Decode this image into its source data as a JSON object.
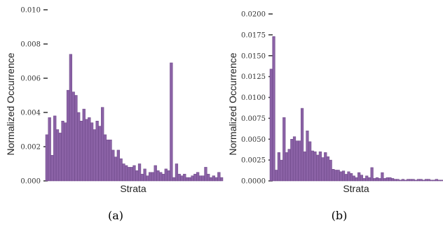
{
  "bar_color": "#8b62a6",
  "chart_data": [
    {
      "type": "bar",
      "panel_label": "(a)",
      "xlabel": "Strata",
      "ylabel": "Normalized Occurrence",
      "ylim": [
        0,
        0.01
      ],
      "yticks": [
        0,
        0.002,
        0.004,
        0.006,
        0.008,
        0.01
      ],
      "ytick_labels": [
        "0.000",
        "0.002",
        "0.004",
        "0.006",
        "0.008",
        "0.010"
      ],
      "values": [
        0.0027,
        0.0037,
        0.0015,
        0.0038,
        0.003,
        0.0028,
        0.0035,
        0.0034,
        0.0053,
        0.0074,
        0.0052,
        0.005,
        0.004,
        0.0035,
        0.0042,
        0.0036,
        0.0037,
        0.0034,
        0.003,
        0.0035,
        0.0032,
        0.0043,
        0.0027,
        0.0024,
        0.0024,
        0.0018,
        0.0014,
        0.0018,
        0.0013,
        0.001,
        0.0009,
        0.0008,
        0.0008,
        0.0009,
        0.0006,
        0.001,
        0.0004,
        0.0007,
        0.0003,
        0.0005,
        0.0005,
        0.0009,
        0.0006,
        0.0005,
        0.0004,
        0.0007,
        0.0006,
        0.0069,
        0.0002,
        0.001,
        0.0004,
        0.0003,
        0.0004,
        0.0002,
        0.0002,
        0.0003,
        0.0004,
        0.0005,
        0.0003,
        0.0003,
        0.0008,
        0.0004,
        0.0002,
        0.0003,
        0.0002,
        0.0005,
        0.0002
      ]
    },
    {
      "type": "bar",
      "panel_label": "(b)",
      "xlabel": "Strata",
      "ylabel": "Normalized Occurrence",
      "ylim": [
        0,
        0.02
      ],
      "yticks": [
        0,
        0.0025,
        0.005,
        0.0075,
        0.01,
        0.0125,
        0.015,
        0.0175,
        0.02
      ],
      "ytick_labels": [
        "0.0000",
        "0.0025",
        "0.0050",
        "0.0075",
        "0.0100",
        "0.0125",
        "0.0150",
        "0.0175",
        "0.0200"
      ],
      "values": [
        0.0134,
        0.0173,
        0.0013,
        0.0034,
        0.0025,
        0.0076,
        0.0034,
        0.0038,
        0.005,
        0.0053,
        0.0048,
        0.0048,
        0.0087,
        0.0035,
        0.006,
        0.0047,
        0.0036,
        0.0035,
        0.0031,
        0.0035,
        0.0028,
        0.0034,
        0.0029,
        0.0025,
        0.0014,
        0.0013,
        0.0013,
        0.0011,
        0.0012,
        0.0008,
        0.0011,
        0.0009,
        0.0006,
        0.0004,
        0.001,
        0.0007,
        0.0003,
        0.0006,
        0.0004,
        0.0016,
        0.0003,
        0.0004,
        0.0003,
        0.001,
        0.0003,
        0.0004,
        0.0004,
        0.0003,
        0.0002,
        0.0002,
        0.0001,
        0.0002,
        0.0001,
        0.0002,
        0.0002,
        0.0002,
        0.0001,
        0.0002,
        0.0002,
        0.0001,
        0.0002,
        0.0002,
        0.0001,
        0.0001,
        0.0002,
        0.0001,
        0.0001
      ]
    }
  ]
}
